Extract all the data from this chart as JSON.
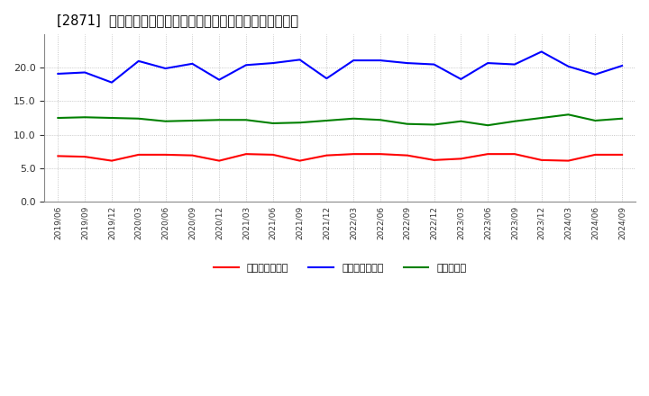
{
  "title": "[2871]  売上債権回転率、買入債務回転率、在庫回転率の推移",
  "x_labels": [
    "2019/06",
    "2019/09",
    "2019/12",
    "2020/03",
    "2020/06",
    "2020/09",
    "2020/12",
    "2021/03",
    "2021/06",
    "2021/09",
    "2021/12",
    "2022/03",
    "2022/06",
    "2022/09",
    "2022/12",
    "2023/03",
    "2023/06",
    "2023/09",
    "2023/12",
    "2024/03",
    "2024/06",
    "2024/09"
  ],
  "uriken": [
    6.8,
    6.7,
    6.1,
    7.0,
    7.0,
    6.9,
    6.1,
    7.1,
    7.0,
    6.1,
    6.9,
    7.1,
    7.1,
    6.9,
    6.2,
    6.4,
    7.1,
    7.1,
    6.2,
    6.1,
    7.0,
    7.0
  ],
  "kaiimu": [
    19.1,
    19.3,
    17.8,
    21.0,
    19.9,
    20.6,
    18.2,
    20.4,
    20.7,
    21.2,
    18.4,
    21.1,
    21.1,
    20.7,
    20.5,
    18.3,
    20.7,
    20.5,
    22.4,
    20.2,
    19.0,
    20.3
  ],
  "zaiko": [
    12.5,
    12.6,
    12.5,
    12.4,
    12.0,
    12.1,
    12.2,
    12.2,
    11.7,
    11.8,
    12.1,
    12.4,
    12.2,
    11.6,
    11.5,
    12.0,
    11.4,
    12.0,
    12.5,
    13.0,
    12.1,
    12.4
  ],
  "color_uriken": "#ff0000",
  "color_kaiimu": "#0000ff",
  "color_zaiko": "#008000",
  "ylim_min": 0,
  "ylim_max": 25,
  "yticks": [
    0.0,
    5.0,
    10.0,
    15.0,
    20.0
  ],
  "label_uriken": "売上債権回転率",
  "label_kaiimu": "買入債務回転率",
  "label_zaiko": "在庫回転率",
  "title_bracket": "[2871]",
  "title_main": "売上債権回転率、買入債務回転率、在庫回転率の推移",
  "bg_color": "#ffffff",
  "grid_color": "#999999",
  "linewidth": 1.5
}
